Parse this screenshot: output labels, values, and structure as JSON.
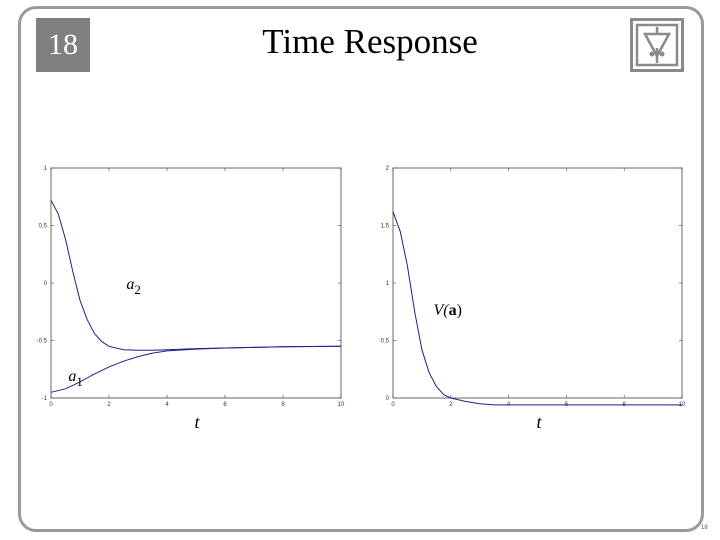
{
  "slide": {
    "number": "18",
    "title": "Time Response",
    "footer_number": "18"
  },
  "logo": {
    "icon": "resistor-ground-logo-icon"
  },
  "colors": {
    "curve": "#1f1f8f",
    "frame": "#9a9a9a",
    "badge": "#7f7f7f"
  },
  "chart_data": [
    {
      "type": "line",
      "title": "",
      "xlabel": "t",
      "ylabel": "",
      "xlim": [
        0,
        10
      ],
      "ylim": [
        -1,
        1
      ],
      "xticks": [
        "0",
        "2",
        "4",
        "6",
        "8",
        "10"
      ],
      "yticks": [
        "-1",
        "-0.5",
        "0",
        "0.5",
        "1"
      ],
      "grid": false,
      "annotations": [
        "a2",
        "a1"
      ],
      "series": [
        {
          "name": "a2",
          "label_main": "a",
          "label_sub": "2",
          "x": [
            0,
            0.25,
            0.5,
            0.75,
            1,
            1.25,
            1.5,
            1.75,
            2,
            2.5,
            3,
            3.5,
            4,
            5,
            6,
            7,
            8,
            9,
            10
          ],
          "y": [
            0.72,
            0.6,
            0.38,
            0.1,
            -0.15,
            -0.32,
            -0.44,
            -0.51,
            -0.55,
            -0.58,
            -0.585,
            -0.585,
            -0.58,
            -0.57,
            -0.565,
            -0.56,
            -0.555,
            -0.552,
            -0.55
          ]
        },
        {
          "name": "a1",
          "label_main": "a",
          "label_sub": "1",
          "x": [
            0,
            0.5,
            1,
            1.5,
            2,
            2.5,
            3,
            3.5,
            4,
            5,
            6,
            7,
            8,
            9,
            10
          ],
          "y": [
            -0.95,
            -0.92,
            -0.86,
            -0.79,
            -0.73,
            -0.68,
            -0.64,
            -0.61,
            -0.59,
            -0.575,
            -0.565,
            -0.56,
            -0.555,
            -0.552,
            -0.55
          ]
        }
      ]
    },
    {
      "type": "line",
      "title": "",
      "xlabel": "t",
      "ylabel": "",
      "xlim": [
        0,
        10
      ],
      "ylim": [
        0,
        2
      ],
      "xticks": [
        "0",
        "2",
        "4",
        "6",
        "8",
        "10"
      ],
      "yticks": [
        "0",
        "0.5",
        "1",
        "1.5",
        "2"
      ],
      "grid": false,
      "annotations": [
        "V(a)"
      ],
      "series": [
        {
          "name": "V(a)",
          "label_main": "V(",
          "label_bold": "a",
          "label_end": ")",
          "x": [
            0,
            0.25,
            0.5,
            0.75,
            1,
            1.25,
            1.5,
            1.75,
            2,
            2.5,
            3,
            3.5,
            4,
            5,
            6,
            7,
            8,
            9,
            10
          ],
          "y": [
            1.62,
            1.45,
            1.15,
            0.75,
            0.42,
            0.22,
            0.1,
            0.03,
            0.0,
            -0.03,
            -0.05,
            -0.06,
            -0.06,
            -0.06,
            -0.06,
            -0.06,
            -0.06,
            -0.06,
            -0.06
          ]
        }
      ]
    }
  ]
}
